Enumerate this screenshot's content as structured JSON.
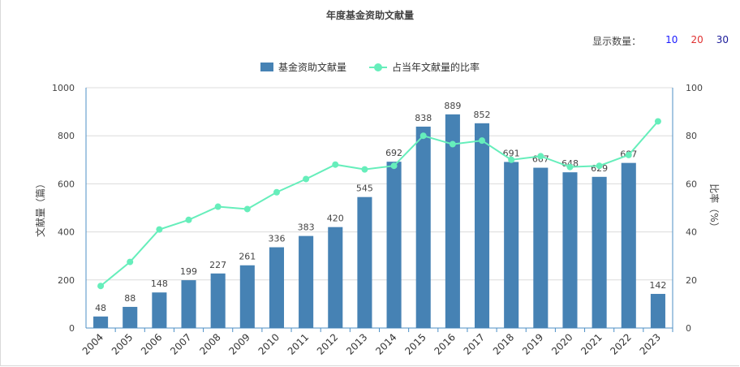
{
  "page": {
    "title": "年度基金资助文献量",
    "count_selector": {
      "label": "显示数量：",
      "options": [
        {
          "label": "10",
          "color": "#1a1aff"
        },
        {
          "label": "20",
          "color": "#e03030"
        },
        {
          "label": "30",
          "color": "#1a1a99"
        }
      ]
    }
  },
  "chart_data": {
    "type": "bar",
    "title": "年度基金资助文献量",
    "categories": [
      "2004",
      "2005",
      "2006",
      "2007",
      "2008",
      "2009",
      "2010",
      "2011",
      "2012",
      "2013",
      "2014",
      "2015",
      "2016",
      "2017",
      "2018",
      "2019",
      "2020",
      "2021",
      "2022",
      "2023"
    ],
    "series": [
      {
        "name": "基金资助文献量",
        "type": "bar",
        "axis": "left",
        "color": "#4682b4",
        "values": [
          48,
          88,
          148,
          199,
          227,
          261,
          336,
          383,
          420,
          545,
          692,
          838,
          889,
          852,
          691,
          667,
          648,
          629,
          687,
          142
        ]
      },
      {
        "name": "占当年文献量的比率",
        "type": "line",
        "axis": "right",
        "color": "#66eebb",
        "values": [
          17.5,
          27.5,
          41,
          45,
          50.5,
          49.5,
          56.5,
          62,
          68,
          66,
          67.5,
          80,
          76.5,
          78,
          70,
          71.5,
          67,
          67.5,
          72,
          86
        ]
      }
    ],
    "ylabel": "文献量（篇）",
    "y2label": "比率（%）",
    "ylim": [
      0,
      1000
    ],
    "y2lim": [
      0,
      100
    ],
    "yticks": [
      0,
      200,
      400,
      600,
      800,
      1000
    ],
    "y2ticks": [
      0,
      20,
      40,
      60,
      80,
      100
    ],
    "grid": true,
    "legend_position": "top-center"
  }
}
